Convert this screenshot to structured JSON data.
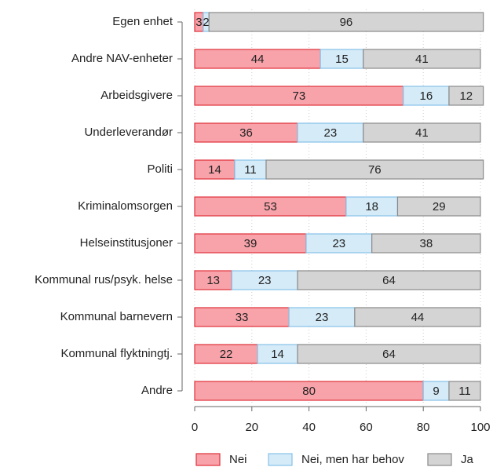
{
  "chart_data": {
    "type": "stacked-barh",
    "categories": [
      "Egen enhet",
      "Andre NAV-enheter",
      "Arbeidsgivere",
      "Underleverandør",
      "Politi",
      "Kriminalomsorgen",
      "Helseinstitusjoner",
      "Kommunal rus/psyk. helse",
      "Kommunal barnevern",
      "Kommunal flyktningtj.",
      "Andre"
    ],
    "series": [
      {
        "name": "Nei",
        "color": "#f8a3aa",
        "edge": "#e0303a",
        "values": [
          3,
          44,
          73,
          36,
          14,
          53,
          39,
          13,
          33,
          22,
          80
        ]
      },
      {
        "name": "Nei, men har behov",
        "color": "#d5ebf8",
        "edge": "#86c2e8",
        "values": [
          2,
          15,
          16,
          23,
          11,
          18,
          23,
          23,
          23,
          14,
          9
        ]
      },
      {
        "name": "Ja",
        "color": "#d4d4d4",
        "edge": "#8a8a8a",
        "values": [
          96,
          41,
          12,
          41,
          76,
          29,
          38,
          64,
          44,
          64,
          11
        ]
      }
    ],
    "xlim": [
      0,
      100
    ],
    "xticks": [
      0,
      20,
      40,
      60,
      80,
      100
    ],
    "grid": true,
    "legend": "bottom"
  }
}
